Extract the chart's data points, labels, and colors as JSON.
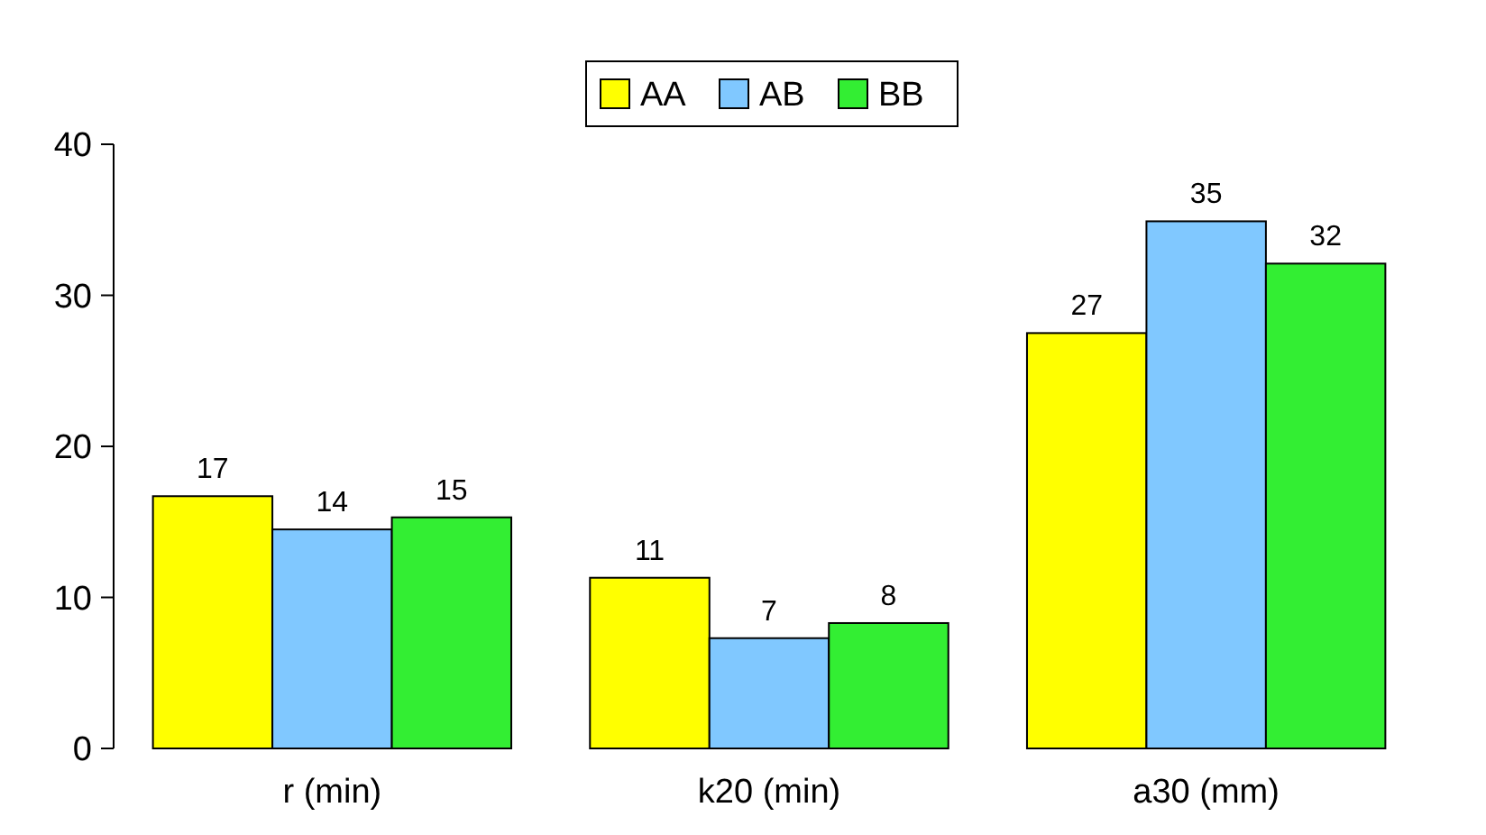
{
  "chart_data": {
    "type": "bar",
    "categories": [
      "r (min)",
      "k20 (min)",
      "a30 (mm)"
    ],
    "series": [
      {
        "name": "AA",
        "color": "#ffff00",
        "values": [
          16.7,
          11.3,
          27.5
        ],
        "value_labels": [
          "17",
          "11",
          "27"
        ]
      },
      {
        "name": "AB",
        "color": "#80c8ff",
        "values": [
          14.5,
          7.3,
          34.9
        ],
        "value_labels": [
          "14",
          "7",
          "35"
        ]
      },
      {
        "name": "BB",
        "color": "#33ee33",
        "values": [
          15.3,
          8.3,
          32.1
        ],
        "value_labels": [
          "15",
          "8",
          "32"
        ]
      }
    ],
    "ylim": [
      0,
      40
    ],
    "yticks": [
      0,
      10,
      20,
      30,
      40
    ],
    "grid": false,
    "legend": "top"
  }
}
